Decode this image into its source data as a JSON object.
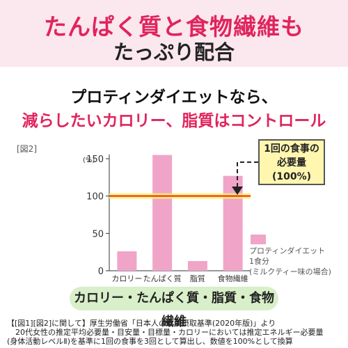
{
  "header": {
    "line1": "たんぱく質と食物繊維も",
    "line2": "たっぷり配合"
  },
  "subheading": {
    "line1": "プロティンダイエットなら、",
    "line2": "減らしたいカロリー、脂質はコントロール"
  },
  "figure_label": "[図2]",
  "callout": {
    "line1": "1回の食事の",
    "line2": "必要量",
    "line3": "(100%)"
  },
  "legend": {
    "line1": "プロティンダイエット",
    "line2": "1食分",
    "line3": "(ミルクティー味の場合)"
  },
  "banner": "カロリー・たんぱく質・脂質・食物繊維",
  "footnote": {
    "line1": "【[図1][図2]に関して】厚生労働省「日本人の食事摂取基準(2020年版)」より",
    "line2": "20代女性の推定平均必要量・目安量・目標量・カロリーにおいては推定エネルギー必要量",
    "line3": "(身体活動レベルⅡ)を基準に1回の食事を3回として算出し、数値を100%として換算"
  },
  "colors": {
    "bar": "#f0a5c8",
    "reference_line": "#e8251f",
    "reference_glow": "#fff06a",
    "accent": "#e0245e"
  },
  "chart_data": {
    "type": "bar",
    "categories": [
      "カロリー",
      "たんぱく質",
      "脂質",
      "食物繊維"
    ],
    "values": [
      26,
      155,
      13,
      127
    ],
    "ylabel": "(%)",
    "yticks": [
      0,
      50,
      100,
      150
    ],
    "ylim": [
      0,
      150
    ],
    "reference_value": 100,
    "grid": false
  }
}
